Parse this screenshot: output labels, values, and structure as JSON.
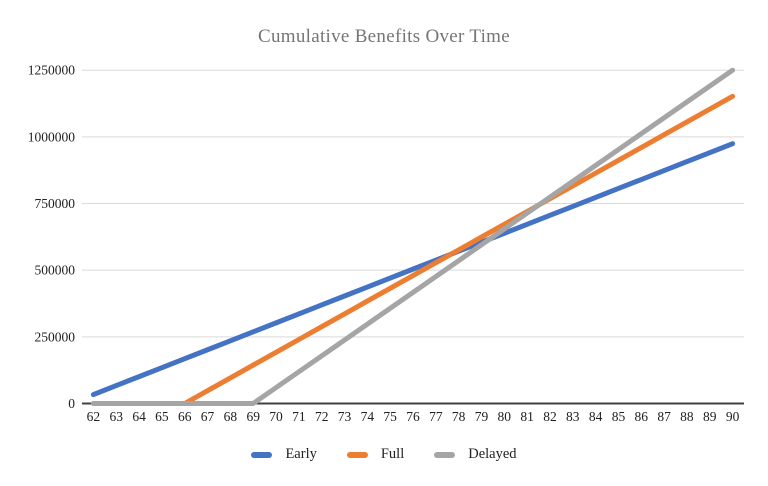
{
  "chart_data": {
    "type": "line",
    "title": "Cumulative Benefits Over Time",
    "xlabel": "",
    "ylabel": "",
    "x": [
      62,
      63,
      64,
      65,
      66,
      67,
      68,
      69,
      70,
      71,
      72,
      73,
      74,
      75,
      76,
      77,
      78,
      79,
      80,
      81,
      82,
      83,
      84,
      85,
      86,
      87,
      88,
      89,
      90
    ],
    "yticks": [
      0,
      250000,
      500000,
      750000,
      1000000,
      1250000
    ],
    "ylim": [
      0,
      1250000
    ],
    "grid": true,
    "legend_position": "bottom",
    "series": [
      {
        "name": "Early",
        "color": "#4472c4",
        "values": [
          33600,
          67200,
          100800,
          134400,
          168000,
          201600,
          235200,
          268800,
          302400,
          336000,
          369600,
          403200,
          436800,
          470400,
          504000,
          537600,
          571200,
          604800,
          638400,
          672000,
          705600,
          739200,
          772800,
          806400,
          840000,
          873600,
          907200,
          940800,
          974400
        ]
      },
      {
        "name": "Full",
        "color": "#ed7d31",
        "values": [
          0,
          0,
          0,
          0,
          0,
          48000,
          96000,
          144000,
          192000,
          240000,
          288000,
          336000,
          384000,
          432000,
          480000,
          528000,
          576000,
          624000,
          672000,
          720000,
          768000,
          816000,
          864000,
          912000,
          960000,
          1008000,
          1056000,
          1104000,
          1152000
        ]
      },
      {
        "name": "Delayed",
        "color": "#a5a5a5",
        "values": [
          0,
          0,
          0,
          0,
          0,
          0,
          0,
          0,
          59520,
          119040,
          178560,
          238080,
          297600,
          357120,
          416640,
          476160,
          535680,
          595200,
          654720,
          714240,
          773760,
          833280,
          892800,
          952320,
          1011840,
          1071360,
          1130880,
          1190400,
          1249920
        ]
      }
    ],
    "colors": {
      "title_color": "#757575",
      "label_color": "#212121",
      "gridline_color": "#d9d9d9",
      "axis_color": "#404040"
    }
  }
}
